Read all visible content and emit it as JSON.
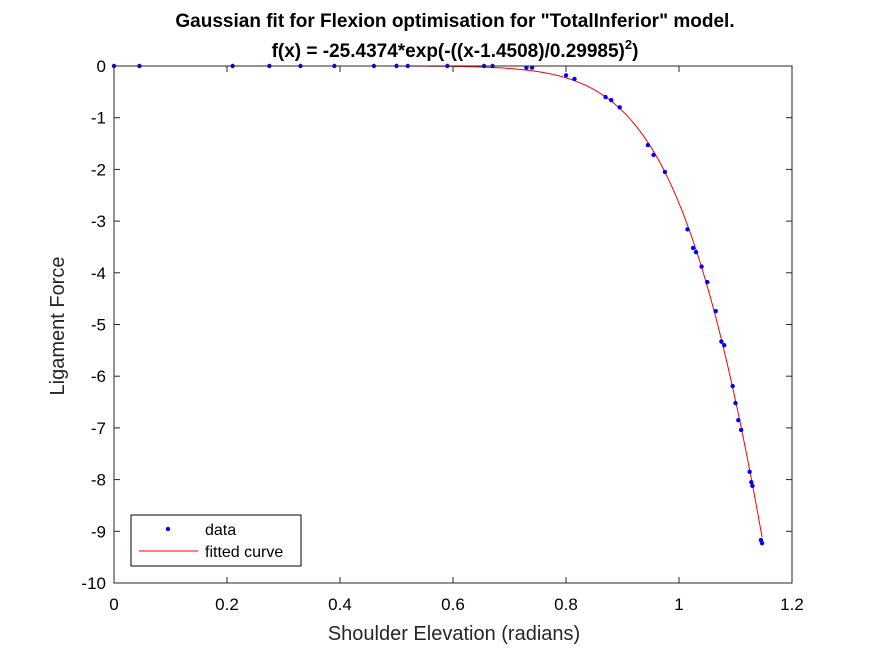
{
  "chart_data": {
    "type": "scatter",
    "title_line1": "Gaussian fit for Flexion optimisation for \"TotalInferior\" model.",
    "title_line2_main": "f(x) = -25.4374*exp(-((x-1.4508)/0.29985)",
    "title_line2_sup": "2",
    "title_line2_end": ")",
    "xlabel": "Shoulder Elevation (radians)",
    "ylabel": "Ligament Force",
    "xlim": [
      0,
      1.2
    ],
    "ylim": [
      -10,
      0
    ],
    "xticks": [
      0,
      0.2,
      0.4,
      0.6,
      0.8,
      1,
      1.2
    ],
    "xtick_labels": [
      "0",
      "0.2",
      "0.4",
      "0.6",
      "0.8",
      "1",
      "1.2"
    ],
    "yticks": [
      0,
      -1,
      -2,
      -3,
      -4,
      -5,
      -6,
      -7,
      -8,
      -9,
      -10
    ],
    "ytick_labels": [
      "0",
      "-1",
      "-2",
      "-3",
      "-4",
      "-5",
      "-6",
      "-7",
      "-8",
      "-9",
      "-10"
    ],
    "grid": false,
    "legend_position": "bottom-left",
    "fit": {
      "a": -25.4374,
      "b": 1.4508,
      "c": 0.29985
    },
    "series": [
      {
        "name": "data",
        "style": "points",
        "color": "#0000ff",
        "x": [
          0.0,
          0.045,
          0.21,
          0.275,
          0.33,
          0.39,
          0.46,
          0.5,
          0.52,
          0.59,
          0.655,
          0.67,
          0.73,
          0.74,
          0.8,
          0.815,
          0.87,
          0.88,
          0.895,
          0.945,
          0.955,
          0.975,
          1.015,
          1.025,
          1.03,
          1.04,
          1.05,
          1.065,
          1.075,
          1.08,
          1.095,
          1.1,
          1.105,
          1.11,
          1.125,
          1.128,
          1.13,
          1.145,
          1.147
        ],
        "y": [
          0.0,
          0.0,
          0.0,
          0.0,
          0.0,
          0.0,
          0.0,
          0.0,
          0.0,
          0.0,
          0.0,
          0.0,
          -0.03,
          -0.03,
          -0.18,
          -0.25,
          -0.6,
          -0.66,
          -0.8,
          -1.53,
          -1.72,
          -2.05,
          -3.16,
          -3.52,
          -3.6,
          -3.88,
          -4.18,
          -4.74,
          -5.33,
          -5.4,
          -6.19,
          -6.52,
          -6.85,
          -7.04,
          -7.85,
          -8.05,
          -8.12,
          -9.17,
          -9.23
        ]
      },
      {
        "name": "fitted curve",
        "style": "line",
        "color": "#ff0000"
      }
    ]
  }
}
